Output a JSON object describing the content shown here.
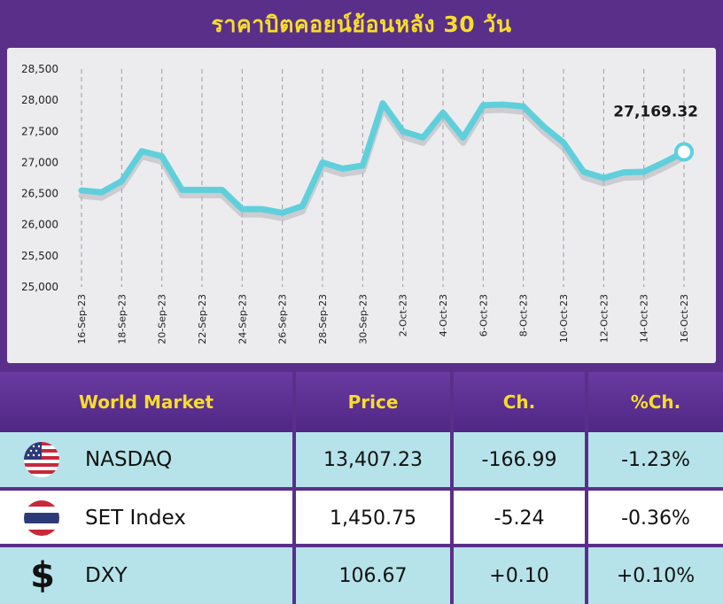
{
  "title": "ราคาบิตคอยน์ย้อนหลัง 30 วัน",
  "chart_data": {
    "type": "line",
    "ylim": [
      25000,
      28500
    ],
    "yticks": [
      "25,000",
      "25,500",
      "26,000",
      "26,500",
      "27,000",
      "27,500",
      "28,000",
      "28,500"
    ],
    "ytick_values": [
      25000,
      25500,
      26000,
      26500,
      27000,
      27500,
      28000,
      28500
    ],
    "xtick_labels": [
      "16-Sep-23",
      "18-Sep-23",
      "20-Sep-23",
      "22-Sep-23",
      "24-Sep-23",
      "26-Sep-23",
      "28-Sep-23",
      "30-Sep-23",
      "2-Oct-23",
      "4-Oct-23",
      "6-Oct-23",
      "8-Oct-23",
      "10-Oct-23",
      "12-Oct-23",
      "14-Oct-23",
      "16-Oct-23"
    ],
    "values": [
      26550,
      26520,
      26700,
      27180,
      27100,
      26560,
      26560,
      26560,
      26250,
      26250,
      26190,
      26300,
      27000,
      26900,
      26950,
      27950,
      27500,
      27400,
      27800,
      27400,
      27920,
      27930,
      27900,
      27580,
      27320,
      26850,
      26750,
      26840,
      26850,
      27000,
      27169.32
    ],
    "last_label": "27,169.32",
    "line_color": "#5fd0db",
    "grid": "vertical-dashed"
  },
  "table": {
    "headers": [
      "World Market",
      "Price",
      "Ch.",
      "%Ch."
    ],
    "rows": [
      {
        "icon": "us-flag-icon",
        "name": "NASDAQ",
        "price": "13,407.23",
        "ch": "-166.99",
        "pch": "-1.23%"
      },
      {
        "icon": "thai-flag-icon",
        "name": "SET Index",
        "price": "1,450.75",
        "ch": "-5.24",
        "pch": "-0.36%"
      },
      {
        "icon": "dollar-icon",
        "name": "DXY",
        "price": "106.67",
        "ch": "+0.10",
        "pch": "+0.10%"
      }
    ]
  }
}
